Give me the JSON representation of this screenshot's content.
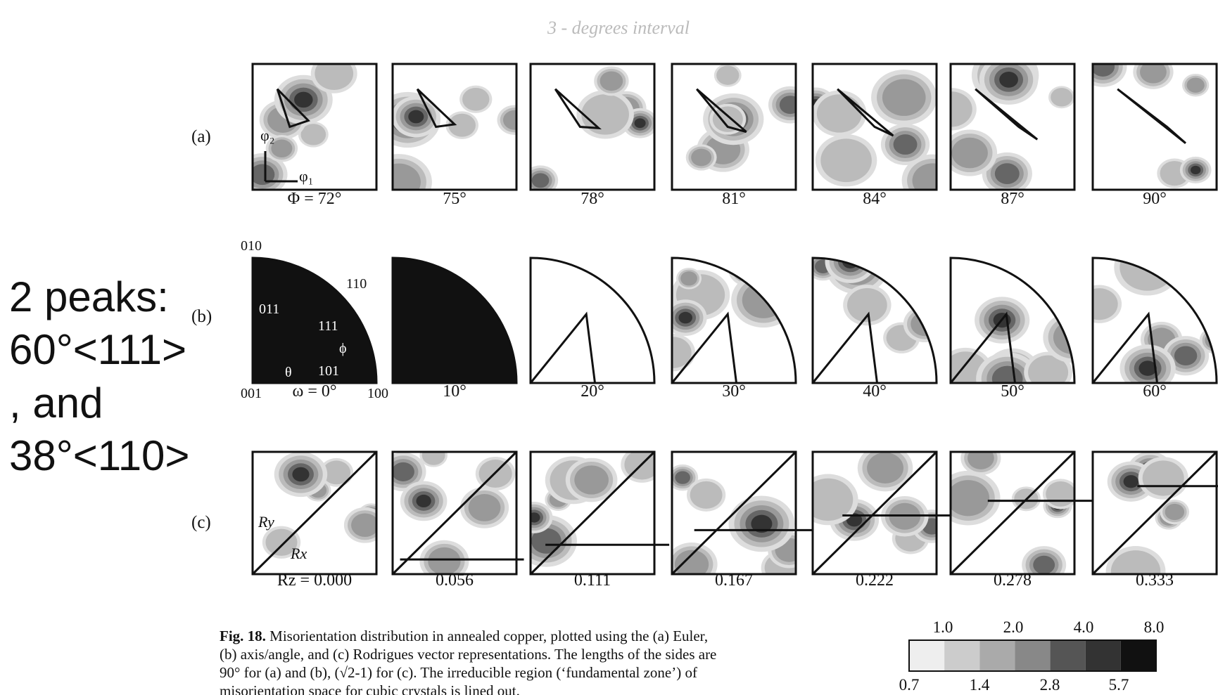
{
  "handwritten_note": "3 - degrees interval",
  "side_note": [
    "2 peaks:",
    "60°<111>",
    ", and",
    "38°<110>"
  ],
  "rows": [
    {
      "label": "(a)",
      "panels": [
        "Φ = 72°",
        "75°",
        "78°",
        "81°",
        "84°",
        "87°",
        "90°"
      ]
    },
    {
      "label": "(b)",
      "panels": [
        "ω = 0°",
        "10°",
        "20°",
        "30°",
        "40°",
        "50°",
        "60°"
      ]
    },
    {
      "label": "(c)",
      "panels": [
        "Rz = 0.000",
        "0.056",
        "0.111",
        "0.167",
        "0.222",
        "0.278",
        "0.333"
      ]
    }
  ],
  "euler_axes": [
    "φ₂",
    "φ₁"
  ],
  "axis_angle_labels": [
    "010",
    "110",
    "011",
    "111",
    "101",
    "001",
    "100",
    "θ",
    "ϕ"
  ],
  "rodrigues_axes": [
    "Ry",
    "Rx"
  ],
  "caption": {
    "label": "Fig. 18.",
    "lines": [
      "Misorientation distribution in annealed copper, plotted using the (a) Euler,",
      "(b) axis/angle, and (c) Rodrigues vector representations.  The lengths of the sides are",
      "90° for (a) and (b), (√2-1) for (c).  The irreducible region (‘fundamental zone’) of",
      "misorientation space for cubic crystals is lined out."
    ]
  },
  "legend": {
    "top": [
      "1.0",
      "2.0",
      "4.0",
      "8.0"
    ],
    "bottom": [
      "0.7",
      "1.4",
      "2.8",
      "5.7"
    ]
  }
}
